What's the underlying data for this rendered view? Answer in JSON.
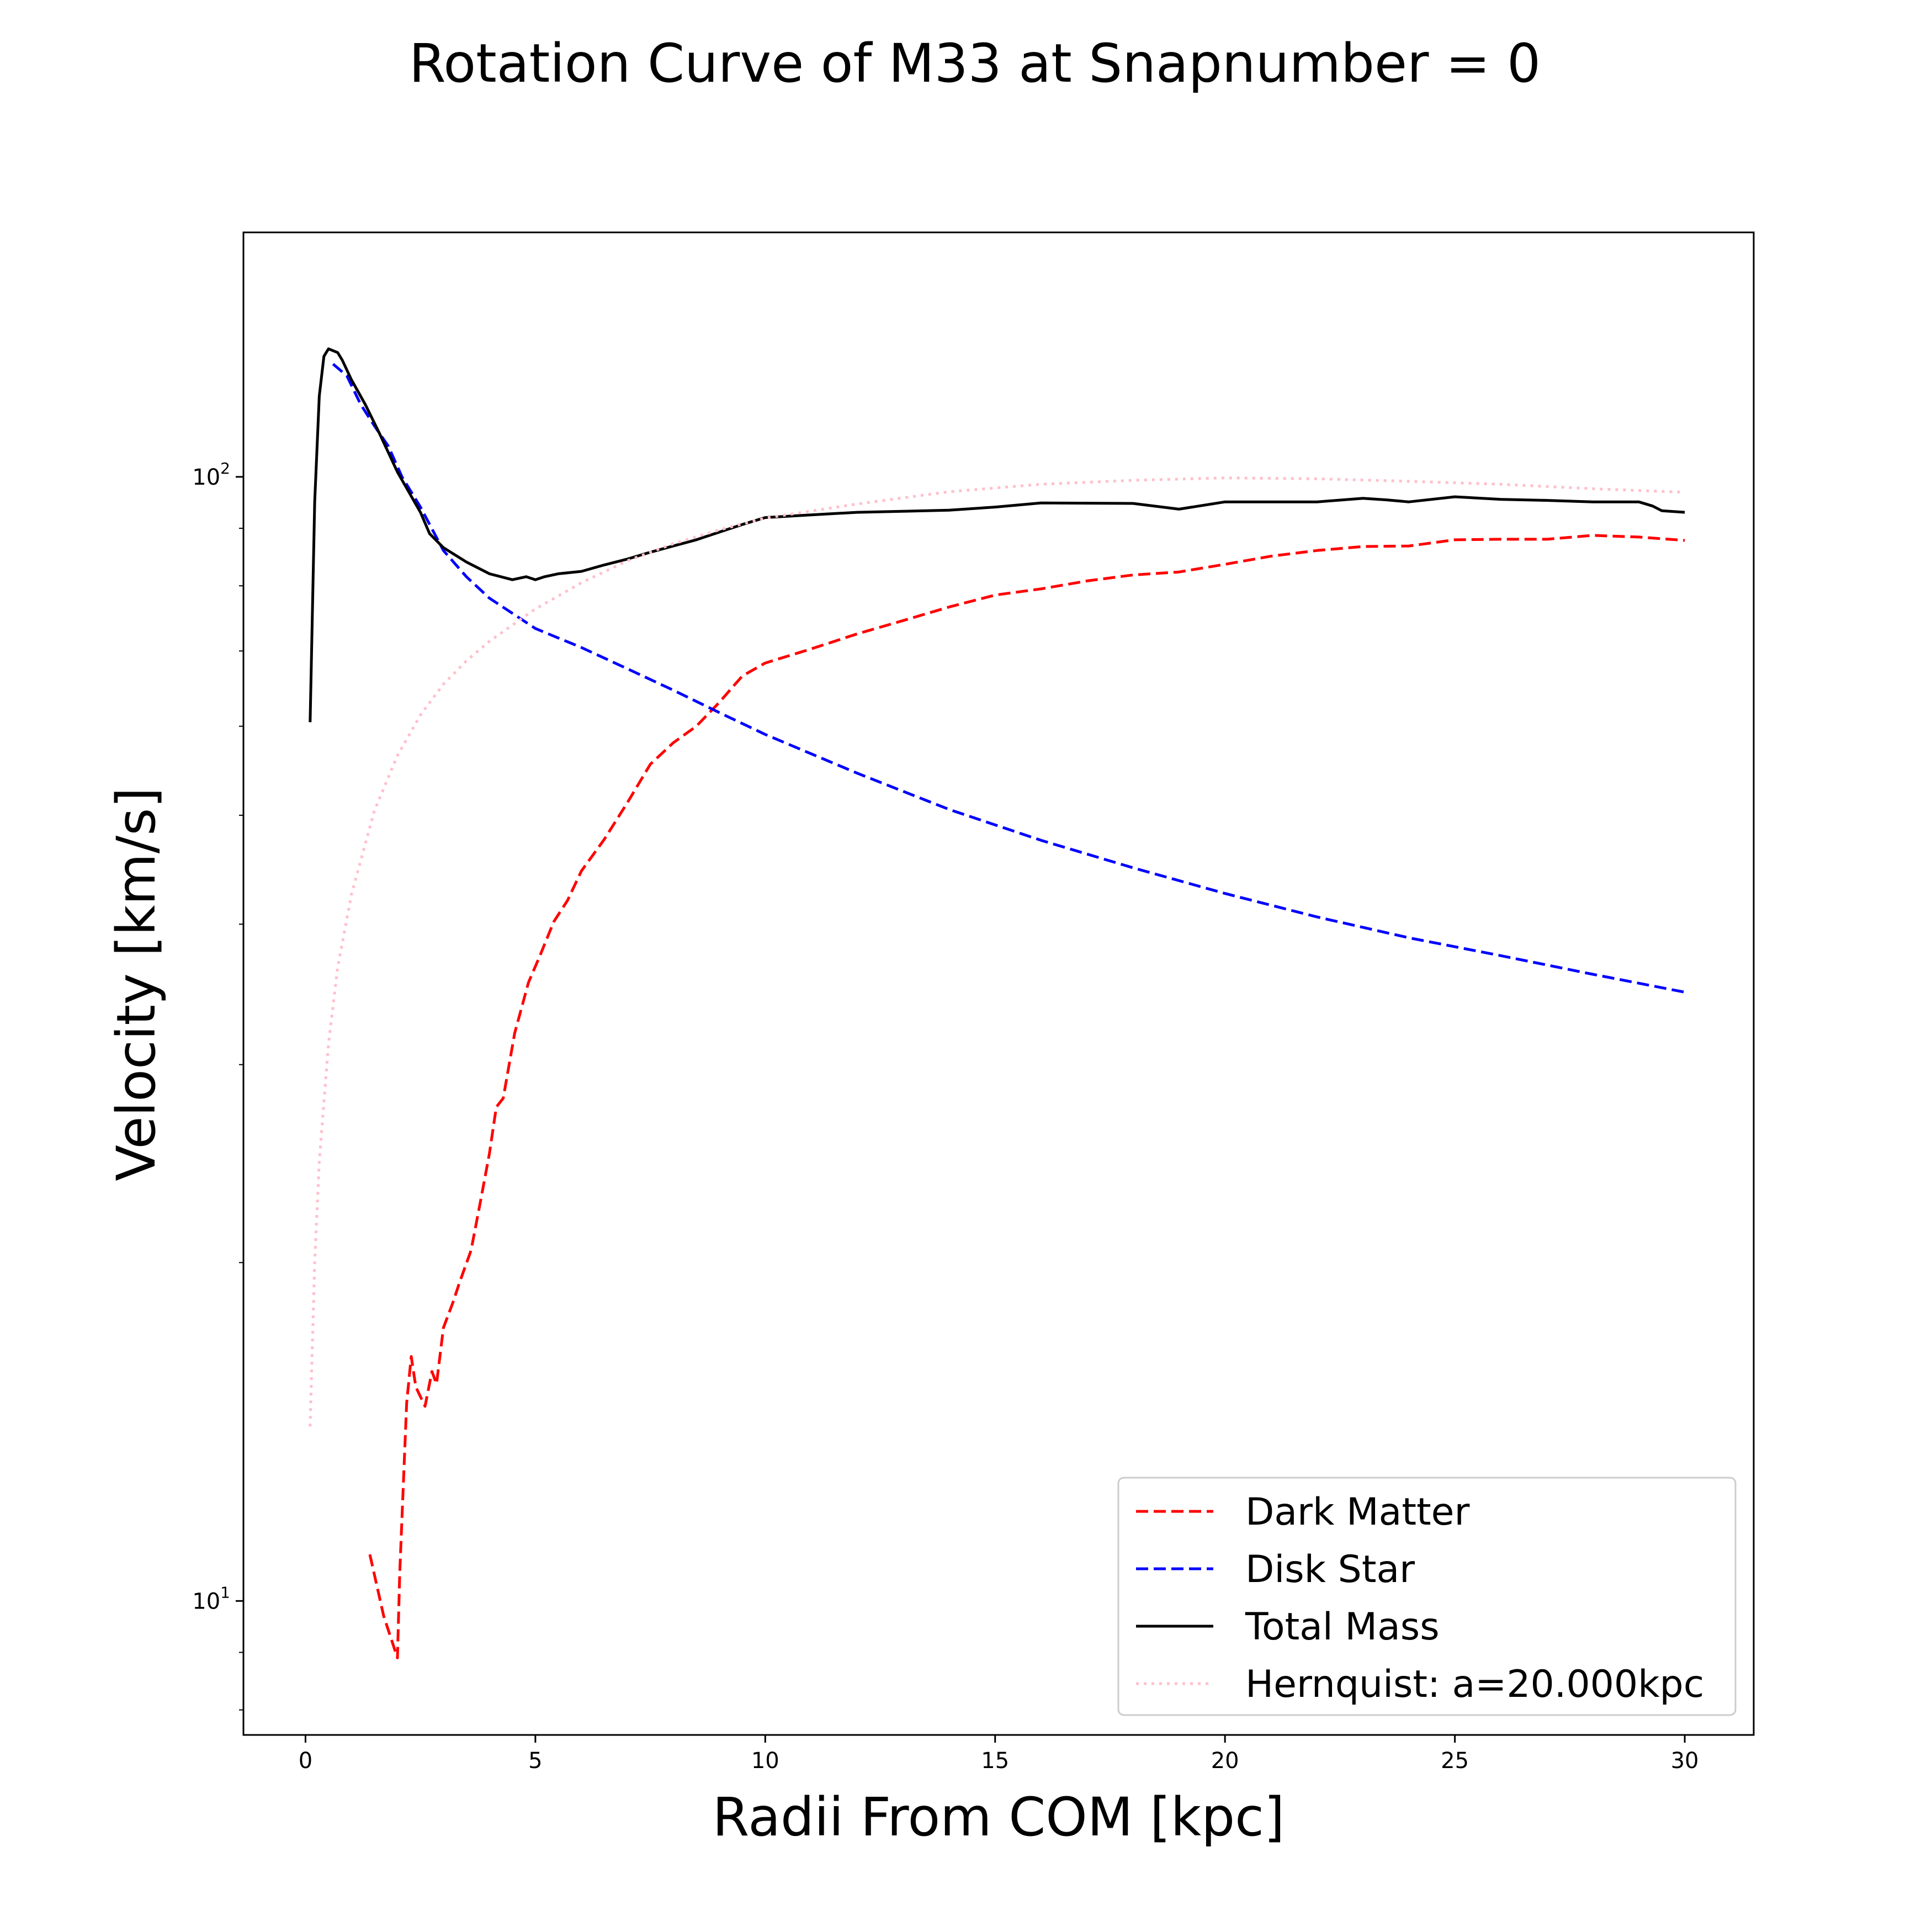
{
  "chart_data": {
    "type": "line",
    "title": "Rotation Curve of M33 at Snapnumber = 0",
    "xlabel": "Radii From COM [kpc]",
    "ylabel": "Velocity [km/s]",
    "xlim": [
      -1.35,
      31.5
    ],
    "ylim": [
      7.6,
      165
    ],
    "yscale": "log",
    "x_ticks": [
      0,
      5,
      10,
      15,
      20,
      25,
      30
    ],
    "y_ticks": [
      {
        "value": 10,
        "base": "10",
        "exp": "1"
      },
      {
        "value": 100,
        "base": "10",
        "exp": "2"
      }
    ],
    "grid": false,
    "legend_position": "lower-right",
    "series": [
      {
        "name": "Dark Matter",
        "color": "#ff0000",
        "style": "dashed",
        "x": [
          1.4,
          1.7,
          2.0,
          2.05,
          2.2,
          2.3,
          2.4,
          2.6,
          2.75,
          2.85,
          3.0,
          3.2,
          3.35,
          3.6,
          3.8,
          4.0,
          4.15,
          4.3,
          4.55,
          4.85,
          5.1,
          5.4,
          5.7,
          6.0,
          6.5,
          7.0,
          7.5,
          8.0,
          8.5,
          9.0,
          9.5,
          10.0,
          11.0,
          12.0,
          13.0,
          14.0,
          15.0,
          16.0,
          17.0,
          18.0,
          19.0,
          20.0,
          21.0,
          22.0,
          23.0,
          24.0,
          25.0,
          26.0,
          27.0,
          28.0,
          29.0,
          30.0
        ],
        "y": [
          11.0,
          9.7,
          8.9,
          10.6,
          15.0,
          16.5,
          15.5,
          14.9,
          16.0,
          15.6,
          17.5,
          18.4,
          19.2,
          20.5,
          22.6,
          25.0,
          27.5,
          28.0,
          32.0,
          35.5,
          37.5,
          40.2,
          42.0,
          44.6,
          47.6,
          51.3,
          55.5,
          58.0,
          60.0,
          63.0,
          66.5,
          68.3,
          70.3,
          72.5,
          74.5,
          76.6,
          78.5,
          79.5,
          80.8,
          81.8,
          82.3,
          83.6,
          85.0,
          86.0,
          86.7,
          86.8,
          87.9,
          88.0,
          88.0,
          88.7,
          88.4,
          87.8
        ]
      },
      {
        "name": "Disk Star",
        "color": "#0000ff",
        "style": "dashed",
        "x": [
          0.6,
          0.9,
          1.2,
          1.5,
          1.8,
          2.1,
          2.5,
          3.0,
          3.5,
          4.0,
          5.0,
          6.0,
          7.0,
          8.0,
          9.0,
          10.0,
          12.0,
          14.0,
          16.0,
          18.0,
          20.0,
          22.0,
          24.0,
          26.0,
          28.0,
          30.0
        ],
        "y": [
          126.0,
          123.0,
          116.0,
          111.0,
          106.5,
          100.0,
          94.0,
          86.0,
          81.5,
          78.0,
          73.3,
          70.5,
          67.5,
          64.6,
          61.7,
          59.0,
          54.5,
          50.6,
          47.5,
          44.9,
          42.6,
          40.6,
          38.9,
          37.5,
          36.1,
          34.8
        ]
      },
      {
        "name": "Total Mass",
        "color": "#000000",
        "style": "solid",
        "x": [
          0.1,
          0.2,
          0.3,
          0.4,
          0.5,
          0.6,
          0.7,
          0.8,
          1.0,
          1.3,
          1.6,
          2.0,
          2.5,
          2.7,
          3.0,
          3.5,
          4.0,
          4.5,
          4.8,
          5.0,
          5.2,
          5.5,
          6.0,
          6.5,
          7.0,
          7.5,
          8.0,
          8.5,
          9.0,
          9.5,
          10.0,
          11.0,
          12.0,
          14.0,
          15.0,
          16.0,
          18.0,
          19.0,
          20.0,
          22.0,
          23.0,
          23.5,
          24.0,
          25.0,
          26.0,
          27.0,
          28.0,
          29.0,
          29.3,
          29.5,
          30.0
        ],
        "y": [
          60.5,
          95.0,
          118.0,
          128.0,
          130.0,
          129.5,
          129.0,
          127.0,
          122.0,
          116.0,
          109.5,
          101.0,
          93.0,
          89.0,
          86.5,
          84.0,
          82.0,
          81.0,
          81.5,
          81.0,
          81.5,
          82.0,
          82.4,
          83.5,
          84.5,
          85.7,
          86.8,
          87.9,
          89.3,
          90.7,
          92.0,
          92.5,
          93.0,
          93.4,
          94.0,
          94.8,
          94.7,
          93.6,
          95.0,
          95.0,
          95.7,
          95.4,
          95.0,
          96.0,
          95.5,
          95.3,
          95.0,
          95.0,
          94.2,
          93.3,
          93.0
        ]
      },
      {
        "name": "Hernquist: a=20.000kpc",
        "color": "#ffc0cb",
        "style": "dotted",
        "x": [
          0.1,
          0.2,
          0.3,
          0.5,
          0.7,
          1.0,
          1.5,
          2.0,
          2.5,
          3.0,
          3.5,
          4.0,
          5.0,
          6.0,
          7.0,
          8.0,
          9.0,
          10.0,
          12.0,
          14.0,
          16.0,
          18.0,
          20.0,
          22.0,
          24.0,
          26.0,
          28.0,
          30.0
        ],
        "y": [
          14.3,
          20.0,
          24.6,
          31.3,
          36.6,
          42.5,
          50.5,
          56.5,
          61.4,
          65.4,
          68.6,
          71.4,
          76.3,
          80.5,
          84.2,
          87.2,
          89.7,
          91.9,
          94.6,
          97.0,
          98.5,
          99.3,
          99.8,
          99.6,
          99.1,
          98.5,
          97.6,
          96.9
        ]
      }
    ]
  }
}
